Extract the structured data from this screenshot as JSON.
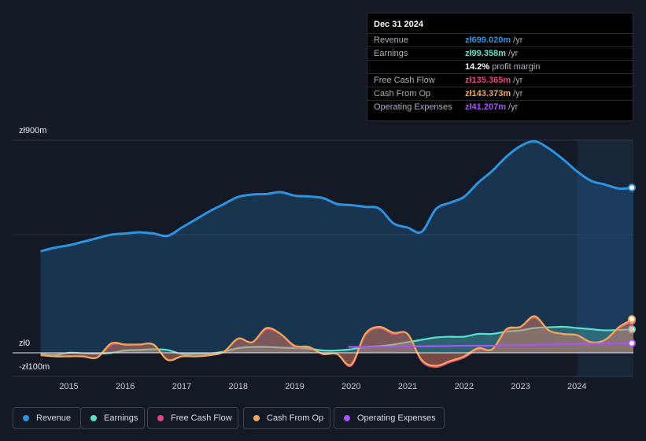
{
  "tooltip": {
    "date": "Dec 31 2024",
    "rows": [
      {
        "label": "Revenue",
        "value": "zł699.020m",
        "unit": " /yr",
        "color": "#2e93e0"
      },
      {
        "label": "Earnings",
        "value": "zł99.358m",
        "unit": " /yr",
        "color": "#5ee0c8"
      },
      {
        "label": "",
        "value": "14.2%",
        "unit": " profit margin",
        "color": "#ffffff"
      },
      {
        "label": "Free Cash Flow",
        "value": "zł135.365m",
        "unit": " /yr",
        "color": "#e0457f"
      },
      {
        "label": "Cash From Op",
        "value": "zł143.373m",
        "unit": " /yr",
        "color": "#f0a95a"
      },
      {
        "label": "Operating Expenses",
        "value": "zł41.207m",
        "unit": " /yr",
        "color": "#a855f7"
      }
    ]
  },
  "legend": [
    {
      "label": "Revenue",
      "color": "#2e93e0"
    },
    {
      "label": "Earnings",
      "color": "#5ee0c8"
    },
    {
      "label": "Free Cash Flow",
      "color": "#e0457f"
    },
    {
      "label": "Cash From Op",
      "color": "#f0a95a"
    },
    {
      "label": "Operating Expenses",
      "color": "#a855f7"
    }
  ],
  "chart_data": {
    "type": "area",
    "y_labels": {
      "top": "zł900m",
      "zero": "zł0",
      "bottom": "-zł100m"
    },
    "ylim": [
      -100,
      900
    ],
    "x_ticks": [
      "2015",
      "2016",
      "2017",
      "2018",
      "2019",
      "2020",
      "2021",
      "2022",
      "2023",
      "2024"
    ],
    "x_tick_values": [
      2015,
      2016,
      2017,
      2018,
      2019,
      2020,
      2021,
      2022,
      2023,
      2024
    ],
    "xlim": [
      2014.45,
      2025.0
    ],
    "forecast_start": 2024.0,
    "series": [
      {
        "name": "Revenue",
        "color": "#2e93e0",
        "fill": true,
        "x": [
          2014.5,
          2014.75,
          2015.0,
          2015.25,
          2015.5,
          2015.75,
          2016.0,
          2016.25,
          2016.5,
          2016.75,
          2017.0,
          2017.25,
          2017.5,
          2017.75,
          2018.0,
          2018.25,
          2018.5,
          2018.75,
          2019.0,
          2019.25,
          2019.5,
          2019.75,
          2020.0,
          2020.25,
          2020.5,
          2020.75,
          2021.0,
          2021.25,
          2021.5,
          2021.75,
          2022.0,
          2022.25,
          2022.5,
          2022.75,
          2023.0,
          2023.25,
          2023.5,
          2023.75,
          2024.0,
          2024.25,
          2024.5,
          2024.75,
          2025.0
        ],
        "values": [
          430,
          445,
          455,
          470,
          485,
          500,
          505,
          510,
          505,
          495,
          530,
          565,
          600,
          630,
          660,
          670,
          672,
          680,
          665,
          662,
          655,
          630,
          625,
          618,
          610,
          548,
          530,
          512,
          608,
          635,
          660,
          720,
          770,
          830,
          875,
          895,
          865,
          820,
          768,
          728,
          712,
          695,
          699
        ]
      },
      {
        "name": "Earnings",
        "color": "#5ee0c8",
        "fill": true,
        "x": [
          2014.5,
          2014.75,
          2015.0,
          2015.25,
          2015.5,
          2015.75,
          2016.0,
          2016.25,
          2016.5,
          2016.75,
          2017.0,
          2017.25,
          2017.5,
          2017.75,
          2018.0,
          2018.25,
          2018.5,
          2018.75,
          2019.0,
          2019.25,
          2019.5,
          2019.75,
          2020.0,
          2020.25,
          2020.5,
          2020.75,
          2021.0,
          2021.25,
          2021.5,
          2021.75,
          2022.0,
          2022.25,
          2022.5,
          2022.75,
          2023.0,
          2023.25,
          2023.5,
          2023.75,
          2024.0,
          2024.25,
          2024.5,
          2024.75,
          2025.0
        ],
        "values": [
          -5,
          -10,
          0,
          -2,
          -4,
          0,
          10,
          12,
          15,
          12,
          -5,
          -5,
          -3,
          5,
          20,
          25,
          25,
          22,
          20,
          18,
          10,
          10,
          15,
          25,
          28,
          35,
          45,
          55,
          65,
          68,
          68,
          80,
          80,
          90,
          95,
          105,
          108,
          110,
          105,
          100,
          95,
          97,
          99
        ]
      },
      {
        "name": "Free Cash Flow",
        "color": "#e0457f",
        "fill": true,
        "x": [
          2014.5,
          2014.75,
          2015.0,
          2015.25,
          2015.5,
          2015.75,
          2016.0,
          2016.25,
          2016.5,
          2016.75,
          2017.0,
          2017.25,
          2017.5,
          2017.75,
          2018.0,
          2018.25,
          2018.5,
          2018.75,
          2019.0,
          2019.25,
          2019.5,
          2019.75,
          2020.0,
          2020.25,
          2020.5,
          2020.75,
          2021.0,
          2021.25,
          2021.5,
          2021.75,
          2022.0,
          2022.25,
          2022.5,
          2022.75,
          2023.0,
          2023.25,
          2023.5,
          2023.75,
          2024.0,
          2024.25,
          2024.5,
          2024.75,
          2025.0
        ],
        "values": [
          -10,
          -15,
          -15,
          -15,
          -20,
          35,
          35,
          35,
          35,
          -30,
          -15,
          -15,
          -10,
          5,
          60,
          45,
          100,
          80,
          25,
          25,
          -5,
          -5,
          -55,
          75,
          105,
          80,
          80,
          -35,
          -60,
          -40,
          -20,
          15,
          15,
          95,
          110,
          150,
          95,
          80,
          75,
          45,
          55,
          105,
          135
        ]
      },
      {
        "name": "Cash From Op",
        "color": "#f0a95a",
        "fill": true,
        "x": [
          2014.5,
          2014.75,
          2015.0,
          2015.25,
          2015.5,
          2015.75,
          2016.0,
          2016.25,
          2016.5,
          2016.75,
          2017.0,
          2017.25,
          2017.5,
          2017.75,
          2018.0,
          2018.25,
          2018.5,
          2018.75,
          2019.0,
          2019.25,
          2019.5,
          2019.75,
          2020.0,
          2020.25,
          2020.5,
          2020.75,
          2021.0,
          2021.25,
          2021.5,
          2021.75,
          2022.0,
          2022.25,
          2022.5,
          2022.75,
          2023.0,
          2023.25,
          2023.5,
          2023.75,
          2024.0,
          2024.25,
          2024.5,
          2024.75,
          2025.0
        ],
        "values": [
          -10,
          -15,
          -15,
          -15,
          -20,
          40,
          35,
          35,
          35,
          -30,
          -15,
          -15,
          -10,
          5,
          60,
          45,
          105,
          80,
          30,
          25,
          -5,
          -5,
          -50,
          80,
          110,
          85,
          80,
          -30,
          -55,
          -35,
          -15,
          20,
          15,
          100,
          110,
          155,
          95,
          80,
          75,
          45,
          55,
          110,
          143
        ]
      },
      {
        "name": "Operating Expenses",
        "color": "#a855f7",
        "fill": false,
        "x": [
          2019.95,
          2020.5,
          2021.0,
          2021.5,
          2022.0,
          2022.5,
          2023.0,
          2023.5,
          2024.0,
          2024.5,
          2025.0
        ],
        "values": [
          25,
          25,
          27,
          28,
          30,
          30,
          33,
          35,
          38,
          40,
          41
        ]
      }
    ]
  }
}
